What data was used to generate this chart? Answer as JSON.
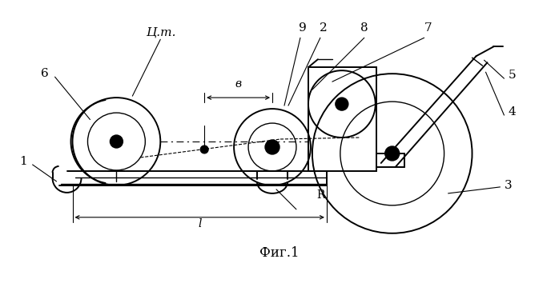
{
  "background": "#ffffff",
  "line_color": "#000000",
  "fig_width": 6.98,
  "fig_height": 3.64,
  "dpi": 100,
  "caption": "Фиг.1",
  "label_цт": "Ц.т.",
  "label_1": "1",
  "label_2": "2",
  "label_3": "3",
  "label_4": "4",
  "label_5": "5",
  "label_6": "6",
  "label_7": "7",
  "label_8": "8",
  "label_9": "9",
  "label_B": "в",
  "label_L": "l",
  "label_R": "R"
}
